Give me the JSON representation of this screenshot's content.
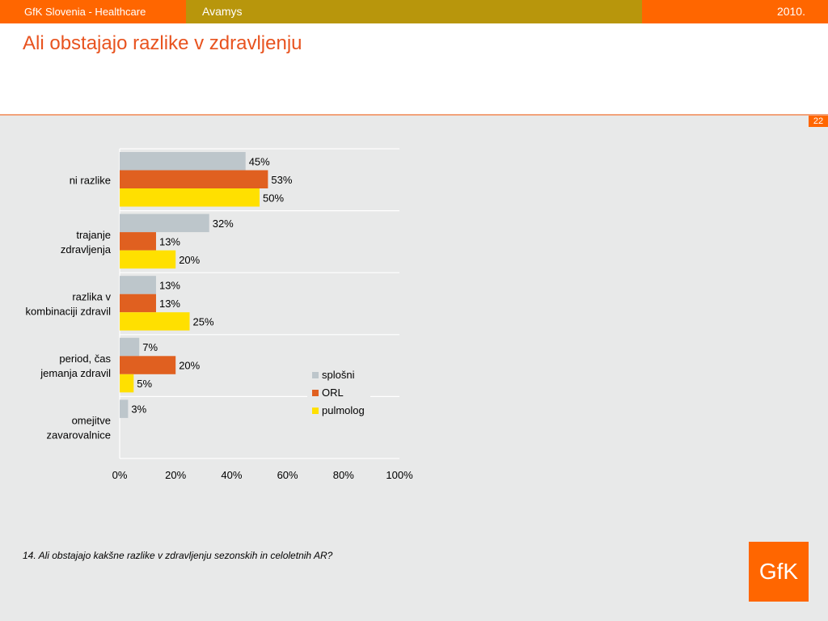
{
  "header": {
    "left": "GfK Slovenia - Healthcare",
    "middle": "Avamys",
    "right": "2010."
  },
  "title": "Ali obstajajo razlike v zdravljenju",
  "page_number": "22",
  "footnote": "14. Ali obstajajo kakšne razlike v zdravljenju sezonskih in celoletnih AR?",
  "logo": "GfK",
  "colors": {
    "accent": "#ff6600",
    "olive": "#b8960c",
    "title": "#e8531f",
    "background": "#e8e9e9"
  },
  "chart_data": {
    "type": "bar",
    "orientation": "horizontal",
    "categories": [
      [
        "ni razlike"
      ],
      [
        "trajanje",
        "zdravljenja"
      ],
      [
        "razlika v",
        "kombinaciji zdravil"
      ],
      [
        "period, čas",
        "jemanja zdravil"
      ],
      [
        "omejitve",
        "zavarovalnice"
      ]
    ],
    "series": [
      {
        "name": "splošni",
        "color": "#bdc6cb",
        "values": [
          45,
          32,
          13,
          7,
          3
        ]
      },
      {
        "name": "ORL",
        "color": "#e06020",
        "values": [
          53,
          13,
          13,
          20,
          null
        ]
      },
      {
        "name": "pulmolog",
        "color": "#ffe000",
        "values": [
          50,
          20,
          25,
          5,
          null
        ]
      }
    ],
    "value_suffix": "%",
    "xlim": [
      0,
      100
    ],
    "xticks": [
      0,
      20,
      40,
      60,
      80,
      100
    ],
    "xtick_labels": [
      "0%",
      "20%",
      "40%",
      "60%",
      "80%",
      "100%"
    ],
    "grid": "horizontal separators between categories",
    "legend": "right"
  }
}
